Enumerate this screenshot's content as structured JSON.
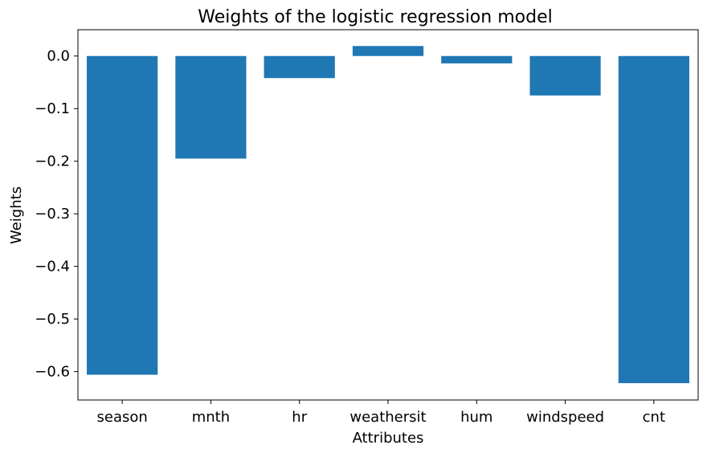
{
  "chart_data": {
    "type": "bar",
    "title": "Weights of the logistic regression model",
    "xlabel": "Attributes",
    "ylabel": "Weights",
    "categories": [
      "season",
      "mnth",
      "hr",
      "weathersit",
      "hum",
      "windspeed",
      "cnt"
    ],
    "values": [
      -0.606,
      -0.195,
      -0.042,
      0.019,
      -0.014,
      -0.075,
      -0.622
    ],
    "yticks": [
      0.0,
      -0.1,
      -0.2,
      -0.3,
      -0.4,
      -0.5,
      -0.6
    ],
    "ytick_labels": [
      "0.0",
      "−0.1",
      "−0.2",
      "−0.3",
      "−0.4",
      "−0.5",
      "−0.6"
    ],
    "ylim": [
      -0.654,
      0.05
    ],
    "grid": false,
    "bar_color": "#1f77b4"
  }
}
